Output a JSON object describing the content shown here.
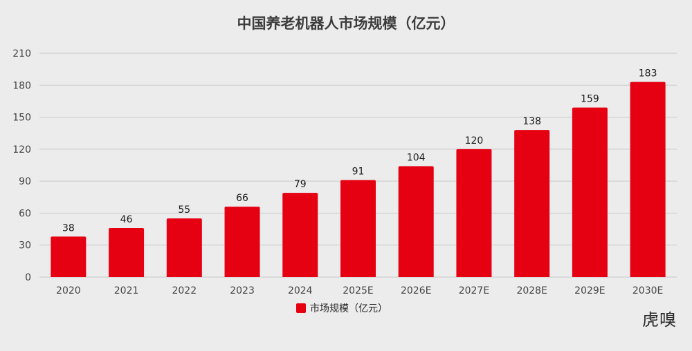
{
  "colors": {
    "bar": "#e50012",
    "grid": "#c8c8c8",
    "axis_text": "#444444",
    "label_text": "#1a1a1a",
    "background": "#ececec"
  },
  "watermark": "虎嗅",
  "chart_data": {
    "type": "bar",
    "title": "中国养老机器人市场规模（亿元）",
    "xlabel": "",
    "ylabel": "",
    "ylim": [
      0,
      210
    ],
    "yticks": [
      0,
      30,
      60,
      90,
      120,
      150,
      180,
      210
    ],
    "categories": [
      "2020",
      "2021",
      "2022",
      "2023",
      "2024",
      "2025E",
      "2026E",
      "2027E",
      "2028E",
      "2029E",
      "2030E"
    ],
    "series": [
      {
        "name": "市场规模（亿元）",
        "values": [
          38,
          46,
          55,
          66,
          79,
          91,
          104,
          120,
          138,
          159,
          183
        ]
      }
    ],
    "grid": true,
    "legend_position": "bottom-center",
    "data_labels": true
  }
}
